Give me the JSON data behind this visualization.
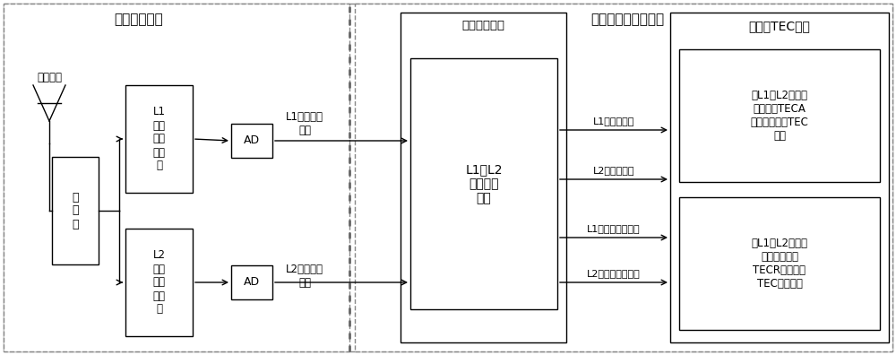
{
  "bg_color": "#ffffff",
  "text_color": "#000000",
  "title_rf": "射频信号处理",
  "title_bb": "基带信号与信息处理",
  "label_antenna": "双频天线",
  "label_splitter": "功\n分\n器",
  "label_l1_filter": "L1\n滤波\n放大\n下变\n频",
  "label_l2_filter": "L2\n滤波\n放大\n下变\n频",
  "label_ad1": "AD",
  "label_ad2": "AD",
  "label_l1_if": "L1数字中频\n信号",
  "label_l2_if": "L2数字中频\n信号",
  "label_tracking_title": "信号跟踪处理",
  "label_tracking_core": "L1与L2\n信号跟踪\n处理",
  "label_l1_pseudo": "L1伪距观测值",
  "label_l2_pseudo": "L2伪距观测值",
  "label_l1_carrier": "L1载波相位观测值",
  "label_l2_carrier": "L2载波相位观测值",
  "label_tec_title": "电离层TEC解算",
  "label_teca": "由L1和L2伪距观\n测值解算TECA\n（电离层绝对TEC\n值）",
  "label_tecr": "由L1和L2载波相\n位观测值解算\nTECR（电离层\nTEC变化值）"
}
